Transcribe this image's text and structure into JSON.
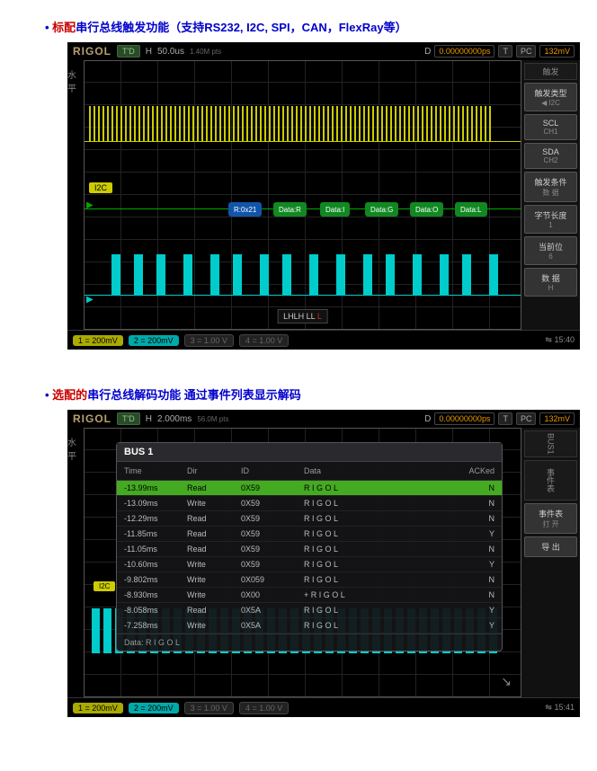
{
  "section1": {
    "title_prefix": "标配",
    "title_main": "串行总线触发功能（支持RS232, I2C, SPI，CAN，FlexRay等）"
  },
  "section2": {
    "title_prefix": "选配的",
    "title_main": "串行总线解码功能 通过事件列表显示解码"
  },
  "scope1": {
    "brand": "RIGOL",
    "run_badge": "T'D",
    "h_label": "H",
    "timebase": "50.0us",
    "sample": "1.40M pts",
    "delay": "D",
    "delay_val": "0.00000000ps",
    "trig": "T",
    "coupling": "PC",
    "level": "132mV",
    "left_label": "水平",
    "i2c_badge": "I2C",
    "decode": {
      "addr": "R:0x21",
      "chips": [
        "Data:R",
        "Data:I",
        "Data:G",
        "Data:O",
        "Data:L"
      ]
    },
    "pattern": "LHLH LL",
    "pattern_suffix": "L",
    "side": {
      "trig_tab": "触发",
      "type_label": "触发类型",
      "type_val": "I2C",
      "scl_label": "SCL",
      "scl_val": "CH1",
      "sda_label": "SDA",
      "sda_val": "CH2",
      "cond_label": "触发条件",
      "cond_val": "数 据",
      "bytes_label": "字节长度",
      "bytes_val": "1",
      "pos_label": "当前位",
      "pos_val": "6",
      "data_label": "数 据",
      "data_val": "H"
    },
    "channels": {
      "ch1": "1",
      "ch1_v": "= 200mV",
      "ch2": "2",
      "ch2_v": "= 200mV",
      "ch3": "3",
      "ch3_v": "= 1.00 V",
      "ch4": "4",
      "ch4_v": "= 1.00 V"
    },
    "time_stamp": "15:40"
  },
  "scope2": {
    "brand": "RIGOL",
    "run_badge": "T'D",
    "h_label": "H",
    "timebase": "2.000ms",
    "sample": "56.0M pts",
    "delay": "D",
    "delay_val": "0.00000000ps",
    "trig": "T",
    "coupling": "PC",
    "level": "132mV",
    "left_label": "水平",
    "bus_title": "BUS 1",
    "bus1_tab": "BUS1",
    "event_tab": "事件表",
    "cols": {
      "time": "Time",
      "dir": "Dir",
      "id": "ID",
      "data": "Data",
      "ack": "ACKed"
    },
    "rows": [
      {
        "time": "-13.99ms",
        "dir": "Read",
        "id": "0X59",
        "data": "R I G O L",
        "ack": "N",
        "hl": true
      },
      {
        "time": "-13.09ms",
        "dir": "Write",
        "id": "0X59",
        "data": "R I G O L",
        "ack": "N",
        "hl": false
      },
      {
        "time": "-12.29ms",
        "dir": "Read",
        "id": "0X59",
        "data": "R I G O L",
        "ack": "N",
        "hl": false
      },
      {
        "time": "-11.85ms",
        "dir": "Read",
        "id": "0X59",
        "data": "R I G O L",
        "ack": "Y",
        "hl": false
      },
      {
        "time": "-11.05ms",
        "dir": "Read",
        "id": "0X59",
        "data": "R I G O L",
        "ack": "N",
        "hl": false
      },
      {
        "time": "-10.60ms",
        "dir": "Write",
        "id": "0X59",
        "data": "R I G O L",
        "ack": "Y",
        "hl": false
      },
      {
        "time": "-9.802ms",
        "dir": "Write",
        "id": "0X059",
        "data": "R I G O L",
        "ack": "N",
        "hl": false
      },
      {
        "time": "-8.930ms",
        "dir": "Write",
        "id": "0X00",
        "data": "+ R I G O L",
        "ack": "N",
        "hl": false
      },
      {
        "time": "-8.058ms",
        "dir": "Read",
        "id": "0X5A",
        "data": "R I G O L",
        "ack": "Y",
        "hl": false
      },
      {
        "time": "-7.258ms",
        "dir": "Write",
        "id": "0X5A",
        "data": "R I G O L",
        "ack": "Y",
        "hl": false
      }
    ],
    "footer": "Data: R I G O L",
    "side": {
      "events_label": "事件表",
      "open_label": "打 开",
      "export_label": "导 出"
    },
    "i2c_badge": "I2C",
    "channels": {
      "ch1": "1",
      "ch1_v": "= 200mV",
      "ch2": "2",
      "ch2_v": "= 200mV",
      "ch3": "3",
      "ch3_v": "= 1.00 V",
      "ch4": "4",
      "ch4_v": "= 1.00 V"
    },
    "time_stamp": "15:41"
  }
}
